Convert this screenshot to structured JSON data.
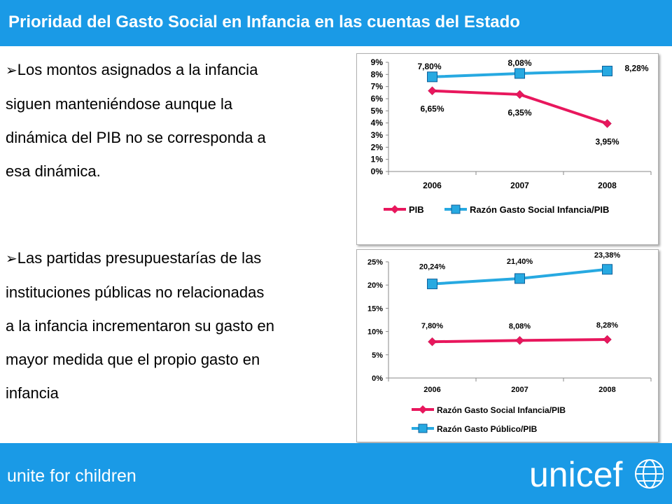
{
  "header": {
    "title": "Prioridad del Gasto Social en Infancia en las cuentas del Estado"
  },
  "bullets": [
    {
      "marker": "➢",
      "lines": [
        "Los montos asignados a la infancia",
        "siguen manteniéndose aunque la",
        "dinámica del PIB no se corresponda a",
        "esa dinámica."
      ]
    },
    {
      "marker": "➢",
      "lines": [
        "Las partidas presupuestarías de las",
        "instituciones públicas no relacionadas",
        "a la infancia incrementaron su gasto en",
        "mayor medida que el propio gasto en",
        "infancia"
      ]
    }
  ],
  "chart_data": [
    {
      "type": "line",
      "categories": [
        "2006",
        "2007",
        "2008"
      ],
      "series": [
        {
          "name": "PIB",
          "values": [
            6.65,
            6.35,
            3.95
          ],
          "labels": [
            "6,65%",
            "6,35%",
            "3,95%"
          ],
          "color": "#e8175d",
          "marker": "diamond"
        },
        {
          "name": "Razón Gasto Social Infancia/PIB",
          "values": [
            7.8,
            8.08,
            8.28
          ],
          "labels": [
            "7,80%",
            "8,08%",
            "8,28%"
          ],
          "color": "#27a9e1",
          "marker": "square"
        }
      ],
      "ylim": [
        0,
        9
      ],
      "yticks": [
        "0%",
        "1%",
        "2%",
        "3%",
        "4%",
        "5%",
        "6%",
        "7%",
        "8%",
        "9%"
      ],
      "grid": false,
      "legend": "bottom"
    },
    {
      "type": "line",
      "categories": [
        "2006",
        "2007",
        "2008"
      ],
      "series": [
        {
          "name": "Razón Gasto Social Infancia/PIB",
          "values": [
            7.8,
            8.08,
            8.28
          ],
          "labels": [
            "7,80%",
            "8,08%",
            "8,28%"
          ],
          "color": "#e8175d",
          "marker": "diamond"
        },
        {
          "name": "Razón Gasto Público/PIB",
          "values": [
            20.24,
            21.4,
            23.38
          ],
          "labels": [
            "20,24%",
            "21,40%",
            "23,38%"
          ],
          "color": "#27a9e1",
          "marker": "square"
        }
      ],
      "ylim": [
        0,
        25
      ],
      "yticks": [
        "0%",
        "5%",
        "10%",
        "15%",
        "20%",
        "25%"
      ],
      "grid": false,
      "legend": "bottom"
    }
  ],
  "footer": {
    "tagline": "unite for children",
    "logo_text": "unicef"
  },
  "colors": {
    "brand": "#1a9ae6",
    "pink": "#e8175d",
    "blue": "#27a9e1"
  }
}
